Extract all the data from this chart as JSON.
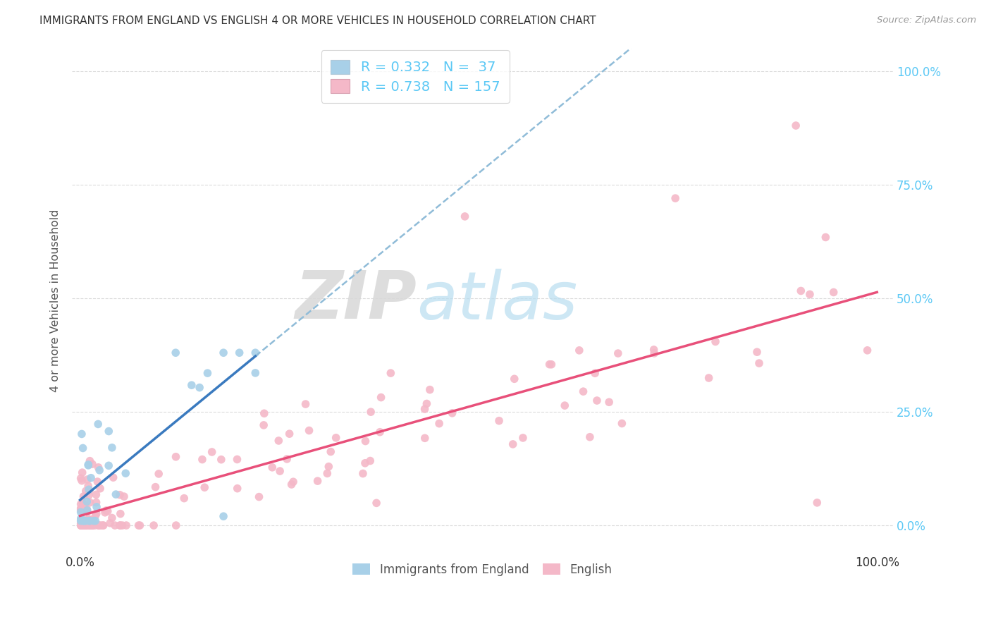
{
  "title": "IMMIGRANTS FROM ENGLAND VS ENGLISH 4 OR MORE VEHICLES IN HOUSEHOLD CORRELATION CHART",
  "source": "Source: ZipAtlas.com",
  "ylabel": "4 or more Vehicles in Household",
  "watermark_zip": "ZIP",
  "watermark_atlas": "atlas",
  "blue_R": "0.332",
  "blue_N": "37",
  "pink_R": "0.738",
  "pink_N": "157",
  "blue_color": "#a8d0e8",
  "pink_color": "#f4b8c8",
  "blue_line_color": "#3a7abf",
  "pink_line_color": "#e8507a",
  "blue_line_dashed_color": "#90bcd8",
  "background_color": "#ffffff",
  "grid_color": "#cccccc",
  "legend_label_blue": "Immigrants from England",
  "legend_label_pink": "English",
  "ytick_values": [
    0.0,
    0.25,
    0.5,
    0.75,
    1.0
  ],
  "ytick_labels_right": [
    "0.0%",
    "25.0%",
    "50.0%",
    "75.0%",
    "100.0%"
  ],
  "title_color": "#333333",
  "source_color": "#999999",
  "axis_label_color": "#555555",
  "tick_label_color": "#333333",
  "right_tick_color": "#5bc8f5"
}
